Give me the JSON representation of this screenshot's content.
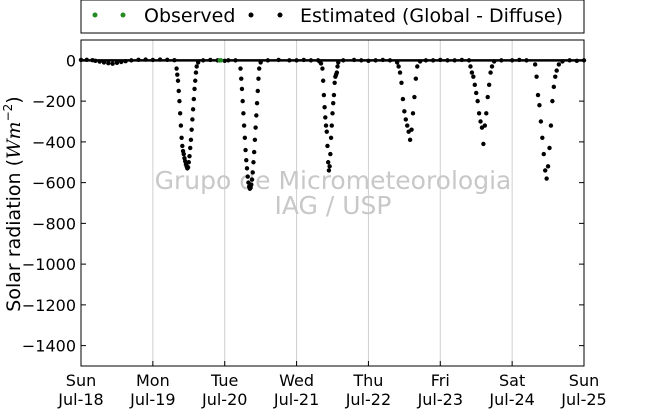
{
  "chart_data": {
    "type": "scatter",
    "title": "",
    "xlabel": "",
    "ylabel": "Solar radiation (Wm⁻²)",
    "ylabel_parts": {
      "text": "Solar radiation (",
      "unit": "Wm",
      "exp": "−2",
      "close": ")"
    },
    "ylim": [
      -1500,
      100
    ],
    "yticks": [
      0,
      -200,
      -400,
      -600,
      -800,
      -1000,
      -1200,
      -1400
    ],
    "xlim": [
      0,
      7
    ],
    "xticks": [
      {
        "x": 0,
        "day": "Sun",
        "date": "Jul-18"
      },
      {
        "x": 1,
        "day": "Mon",
        "date": "Jul-19"
      },
      {
        "x": 2,
        "day": "Tue",
        "date": "Jul-20"
      },
      {
        "x": 3,
        "day": "Wed",
        "date": "Jul-21"
      },
      {
        "x": 4,
        "day": "Thu",
        "date": "Jul-22"
      },
      {
        "x": 5,
        "day": "Fri",
        "date": "Jul-23"
      },
      {
        "x": 6,
        "day": "Sat",
        "date": "Jul-24"
      },
      {
        "x": 7,
        "day": "Sun",
        "date": "Jul-25"
      }
    ],
    "grid": "vertical",
    "legend_position": "top-center-outside",
    "series": [
      {
        "name": "Observed",
        "color": "#228b22",
        "marker": "dot",
        "points": [
          [
            1.93,
            0
          ],
          [
            1.95,
            0
          ]
        ]
      },
      {
        "name": "Estimated (Global - Diffuse)",
        "color": "#000000",
        "marker": "dot",
        "points": [
          [
            0.0,
            2
          ],
          [
            0.08,
            3
          ],
          [
            0.16,
            1
          ],
          [
            0.2,
            -2
          ],
          [
            0.26,
            -6
          ],
          [
            0.32,
            -10
          ],
          [
            0.38,
            -14
          ],
          [
            0.44,
            -16
          ],
          [
            0.5,
            -12
          ],
          [
            0.56,
            -8
          ],
          [
            0.62,
            -4
          ],
          [
            0.7,
            0
          ],
          [
            0.8,
            3
          ],
          [
            0.9,
            4
          ],
          [
            1.0,
            2
          ],
          [
            1.1,
            4
          ],
          [
            1.2,
            3
          ],
          [
            1.3,
            1
          ],
          [
            1.33,
            -40
          ],
          [
            1.34,
            -70
          ],
          [
            1.35,
            -100
          ],
          [
            1.36,
            -150
          ],
          [
            1.37,
            -200
          ],
          [
            1.38,
            -260
          ],
          [
            1.39,
            -320
          ],
          [
            1.4,
            -380
          ],
          [
            1.41,
            -420
          ],
          [
            1.42,
            -445
          ],
          [
            1.43,
            -460
          ],
          [
            1.44,
            -480
          ],
          [
            1.45,
            -495
          ],
          [
            1.46,
            -510
          ],
          [
            1.47,
            -520
          ],
          [
            1.48,
            -530
          ],
          [
            1.49,
            -525
          ],
          [
            1.5,
            -500
          ],
          [
            1.51,
            -470
          ],
          [
            1.52,
            -430
          ],
          [
            1.53,
            -390
          ],
          [
            1.54,
            -340
          ],
          [
            1.55,
            -290
          ],
          [
            1.56,
            -240
          ],
          [
            1.57,
            -190
          ],
          [
            1.58,
            -140
          ],
          [
            1.59,
            -100
          ],
          [
            1.6,
            -60
          ],
          [
            1.61,
            -30
          ],
          [
            1.63,
            -10
          ],
          [
            1.7,
            0
          ],
          [
            1.8,
            2
          ],
          [
            1.9,
            0
          ],
          [
            2.0,
            -2
          ],
          [
            2.05,
            0
          ],
          [
            2.15,
            0
          ],
          [
            2.22,
            -40
          ],
          [
            2.23,
            -90
          ],
          [
            2.24,
            -140
          ],
          [
            2.25,
            -200
          ],
          [
            2.26,
            -260
          ],
          [
            2.27,
            -320
          ],
          [
            2.28,
            -380
          ],
          [
            2.29,
            -440
          ],
          [
            2.3,
            -490
          ],
          [
            2.31,
            -530
          ],
          [
            2.32,
            -570
          ],
          [
            2.33,
            -600
          ],
          [
            2.34,
            -620
          ],
          [
            2.35,
            -630
          ],
          [
            2.36,
            -625
          ],
          [
            2.37,
            -610
          ],
          [
            2.38,
            -585
          ],
          [
            2.39,
            -550
          ],
          [
            2.4,
            -500
          ],
          [
            2.41,
            -450
          ],
          [
            2.42,
            -390
          ],
          [
            2.43,
            -330
          ],
          [
            2.44,
            -270
          ],
          [
            2.45,
            -210
          ],
          [
            2.46,
            -150
          ],
          [
            2.47,
            -90
          ],
          [
            2.48,
            -40
          ],
          [
            2.5,
            -10
          ],
          [
            2.6,
            0
          ],
          [
            2.75,
            2
          ],
          [
            2.9,
            0
          ],
          [
            3.0,
            0
          ],
          [
            3.1,
            2
          ],
          [
            3.2,
            0
          ],
          [
            3.3,
            0
          ],
          [
            3.32,
            -5
          ],
          [
            3.34,
            -15
          ],
          [
            3.36,
            -40
          ],
          [
            3.37,
            -100
          ],
          [
            3.38,
            -170
          ],
          [
            3.39,
            -230
          ],
          [
            3.4,
            -280
          ],
          [
            3.41,
            -320
          ],
          [
            3.42,
            -350
          ],
          [
            3.43,
            -420
          ],
          [
            3.44,
            -500
          ],
          [
            3.45,
            -540
          ],
          [
            3.46,
            -520
          ],
          [
            3.47,
            -460
          ],
          [
            3.48,
            -380
          ],
          [
            3.49,
            -320
          ],
          [
            3.5,
            -260
          ],
          [
            3.51,
            -210
          ],
          [
            3.52,
            -170
          ],
          [
            3.53,
            -110
          ],
          [
            3.54,
            -80
          ],
          [
            3.55,
            -70
          ],
          [
            3.56,
            -60
          ],
          [
            3.57,
            -30
          ],
          [
            3.58,
            -10
          ],
          [
            3.65,
            0
          ],
          [
            3.8,
            2
          ],
          [
            3.9,
            0
          ],
          [
            4.0,
            -2
          ],
          [
            4.1,
            0
          ],
          [
            4.2,
            2
          ],
          [
            4.3,
            0
          ],
          [
            4.4,
            -10
          ],
          [
            4.42,
            -30
          ],
          [
            4.44,
            -60
          ],
          [
            4.46,
            -110
          ],
          [
            4.48,
            -190
          ],
          [
            4.5,
            -250
          ],
          [
            4.52,
            -290
          ],
          [
            4.54,
            -320
          ],
          [
            4.56,
            -350
          ],
          [
            4.58,
            -390
          ],
          [
            4.6,
            -340
          ],
          [
            4.62,
            -260
          ],
          [
            4.64,
            -180
          ],
          [
            4.66,
            -90
          ],
          [
            4.68,
            -30
          ],
          [
            4.72,
            -5
          ],
          [
            4.8,
            0
          ],
          [
            4.9,
            0
          ],
          [
            5.0,
            2
          ],
          [
            5.1,
            0
          ],
          [
            5.2,
            0
          ],
          [
            5.3,
            2
          ],
          [
            5.4,
            0
          ],
          [
            5.42,
            -30
          ],
          [
            5.44,
            -60
          ],
          [
            5.46,
            -80
          ],
          [
            5.48,
            -120
          ],
          [
            5.5,
            -160
          ],
          [
            5.52,
            -200
          ],
          [
            5.54,
            -260
          ],
          [
            5.56,
            -300
          ],
          [
            5.58,
            -330
          ],
          [
            5.6,
            -410
          ],
          [
            5.62,
            -320
          ],
          [
            5.64,
            -260
          ],
          [
            5.66,
            -180
          ],
          [
            5.68,
            -120
          ],
          [
            5.7,
            -60
          ],
          [
            5.72,
            -30
          ],
          [
            5.75,
            -5
          ],
          [
            5.85,
            0
          ],
          [
            6.0,
            0
          ],
          [
            6.1,
            2
          ],
          [
            6.2,
            0
          ],
          [
            6.32,
            -20
          ],
          [
            6.34,
            -80
          ],
          [
            6.36,
            -170
          ],
          [
            6.38,
            -220
          ],
          [
            6.4,
            -300
          ],
          [
            6.42,
            -380
          ],
          [
            6.44,
            -460
          ],
          [
            6.46,
            -540
          ],
          [
            6.48,
            -580
          ],
          [
            6.5,
            -520
          ],
          [
            6.52,
            -430
          ],
          [
            6.54,
            -320
          ],
          [
            6.56,
            -200
          ],
          [
            6.58,
            -130
          ],
          [
            6.6,
            -80
          ],
          [
            6.62,
            -50
          ],
          [
            6.65,
            -20
          ],
          [
            6.7,
            -5
          ],
          [
            6.8,
            0
          ],
          [
            6.9,
            -2
          ],
          [
            7.0,
            0
          ]
        ]
      }
    ],
    "zero_line": true
  },
  "watermark": {
    "line1": "Grupo de Micrometeorologia",
    "line2": "IAG / USP"
  }
}
